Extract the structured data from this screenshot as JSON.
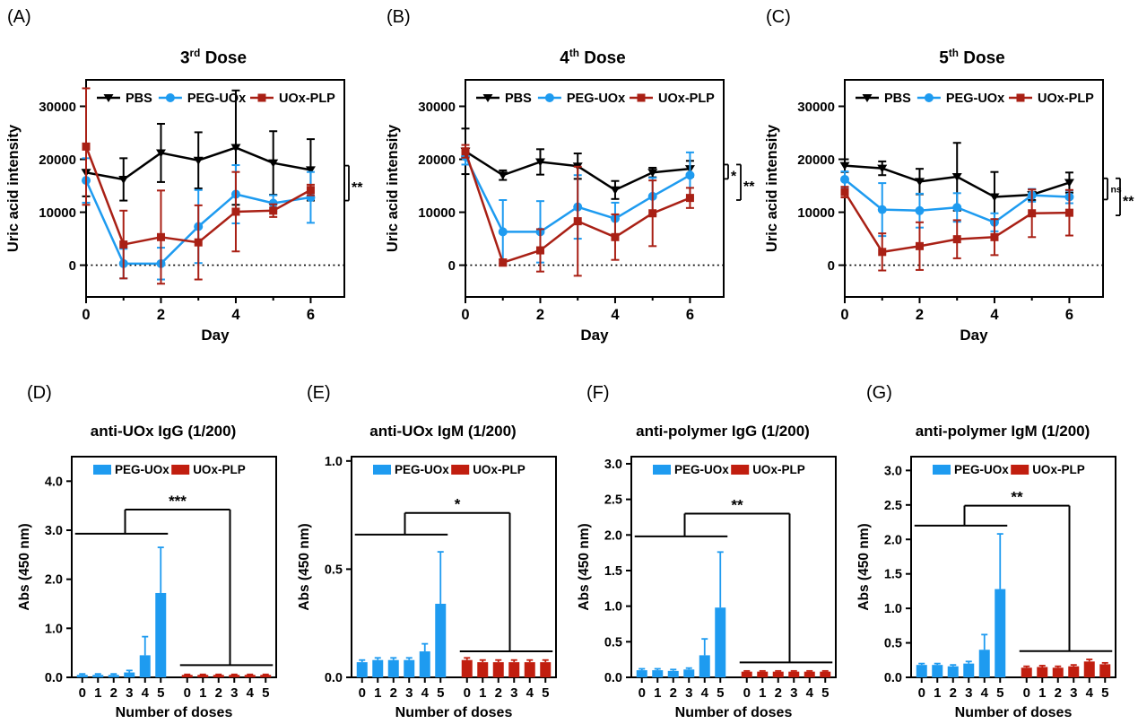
{
  "colors": {
    "pbs": "#000000",
    "peg_uox": "#1E9BF0",
    "uox_plp": "#A92015",
    "uox_plp_bar": "#C11E0F",
    "axis": "#000000"
  },
  "chart_data": [
    {
      "panel_letter": "(A)",
      "type": "line",
      "title_base": "3",
      "title_sup": "rd",
      "title_rest": " Dose",
      "xlabel": "Day",
      "ylabel": "Uric acid intensity",
      "x": [
        0,
        1,
        2,
        3,
        4,
        5,
        6
      ],
      "xticks_major": [
        0,
        2,
        4,
        6
      ],
      "xticks_minor": [
        1,
        3,
        5
      ],
      "yticks": [
        0,
        10000,
        20000,
        30000
      ],
      "ytick_labels": [
        "0",
        "10000",
        "20000",
        "30000"
      ],
      "ylim": [
        -6000,
        35000
      ],
      "xlim": [
        0,
        6.9
      ],
      "zero_line": true,
      "series": [
        {
          "name": "PBS",
          "color_key": "pbs",
          "marker": "triangle-down",
          "values": [
            17500,
            16200,
            21200,
            19800,
            22200,
            19300,
            18000
          ],
          "errors": [
            4500,
            4000,
            5500,
            5300,
            10800,
            6000,
            5800
          ]
        },
        {
          "name": "PEG-UOx",
          "color_key": "peg_uox",
          "marker": "circle",
          "values": [
            16000,
            300,
            300,
            7300,
            13400,
            11700,
            12800
          ],
          "errors": [
            4200,
            2800,
            3000,
            6900,
            5500,
            1500,
            4800
          ]
        },
        {
          "name": "UOx-PLP",
          "color_key": "uox_plp",
          "marker": "square",
          "values": [
            22400,
            3900,
            5300,
            4300,
            10100,
            10300,
            14200
          ],
          "errors": [
            11000,
            6400,
            8800,
            7000,
            7500,
            1200,
            1000
          ]
        }
      ],
      "significance": [
        {
          "label": "**",
          "from": 18800,
          "to": 12200
        }
      ]
    },
    {
      "panel_letter": "(B)",
      "type": "line",
      "title_base": "4",
      "title_sup": "th",
      "title_rest": " Dose",
      "xlabel": "Day",
      "ylabel": "Uric acid intensity",
      "x": [
        0,
        1,
        2,
        3,
        4,
        5,
        6
      ],
      "xticks_major": [
        0,
        2,
        4,
        6
      ],
      "xticks_minor": [
        1,
        3,
        5
      ],
      "yticks": [
        0,
        10000,
        20000,
        30000
      ],
      "ytick_labels": [
        "0",
        "10000",
        "20000",
        "30000"
      ],
      "ylim": [
        -6000,
        35000
      ],
      "xlim": [
        0,
        6.9
      ],
      "zero_line": true,
      "series": [
        {
          "name": "PBS",
          "color_key": "pbs",
          "marker": "triangle-down",
          "values": [
            21500,
            17000,
            19500,
            18700,
            14200,
            17500,
            18200
          ],
          "errors": [
            4300,
            900,
            2400,
            2400,
            1700,
            900,
            1500
          ]
        },
        {
          "name": "PEG-UOx",
          "color_key": "peg_uox",
          "marker": "circle",
          "values": [
            20500,
            6300,
            6300,
            11000,
            8800,
            13000,
            17000
          ],
          "errors": [
            1500,
            6000,
            5800,
            6000,
            3000,
            3500,
            4300
          ]
        },
        {
          "name": "UOx-PLP",
          "color_key": "uox_plp",
          "marker": "square",
          "values": [
            21500,
            500,
            2800,
            8300,
            5300,
            9800,
            12700
          ],
          "errors": [
            1200,
            600,
            4000,
            10300,
            4300,
            6200,
            1900
          ]
        }
      ],
      "significance": [
        {
          "label": "*",
          "from": 19000,
          "to": 16300
        },
        {
          "label": "**",
          "from": 19000,
          "to": 12300
        }
      ]
    },
    {
      "panel_letter": "(C)",
      "type": "line",
      "title_base": "5",
      "title_sup": "th",
      "title_rest": " Dose",
      "xlabel": "Day",
      "ylabel": "Uric acid intensity",
      "x": [
        0,
        1,
        2,
        3,
        4,
        5,
        6
      ],
      "xticks_major": [
        0,
        2,
        4,
        6
      ],
      "xticks_minor": [
        1,
        3,
        5
      ],
      "yticks": [
        0,
        10000,
        20000,
        30000
      ],
      "ytick_labels": [
        "0",
        "10000",
        "20000",
        "30000"
      ],
      "ylim": [
        -6000,
        35000
      ],
      "xlim": [
        0,
        6.9
      ],
      "zero_line": true,
      "series": [
        {
          "name": "PBS",
          "color_key": "pbs",
          "marker": "triangle-down",
          "values": [
            18800,
            18300,
            15800,
            16700,
            12900,
            13300,
            15600
          ],
          "errors": [
            1200,
            1300,
            2400,
            6400,
            4700,
            1000,
            1900
          ]
        },
        {
          "name": "PEG-UOx",
          "color_key": "peg_uox",
          "marker": "circle",
          "values": [
            16200,
            10500,
            10300,
            10900,
            8100,
            13200,
            12900
          ],
          "errors": [
            1500,
            5000,
            3200,
            2700,
            1700,
            1200,
            1200
          ]
        },
        {
          "name": "UOx-PLP",
          "color_key": "uox_plp",
          "marker": "square",
          "values": [
            13800,
            2500,
            3600,
            4900,
            5300,
            9800,
            9900
          ],
          "errors": [
            1000,
            3500,
            4500,
            3600,
            3400,
            4500,
            4300
          ]
        }
      ],
      "significance": [
        {
          "label": "ns",
          "from": 16400,
          "to": 12400
        },
        {
          "label": "**",
          "from": 16400,
          "to": 9400
        }
      ]
    },
    {
      "panel_letter": "(D)",
      "type": "bar",
      "title": "anti-UOx IgG (1/200)",
      "xlabel": "Number of doses",
      "ylabel": "Abs (450 nm)",
      "categories": [
        "0",
        "1",
        "2",
        "3",
        "4",
        "5"
      ],
      "yticks": [
        0,
        1,
        2,
        3,
        4
      ],
      "ytick_labels": [
        "0.0",
        "1.0",
        "2.0",
        "3.0",
        "4.0"
      ],
      "ylim": [
        0,
        4.5
      ],
      "series": [
        {
          "name": "PEG-UOx",
          "color_key": "peg_uox",
          "values": [
            0.05,
            0.05,
            0.05,
            0.1,
            0.45,
            1.72
          ],
          "errors": [
            0.02,
            0.02,
            0.02,
            0.04,
            0.38,
            0.93
          ]
        },
        {
          "name": "UOx-PLP",
          "color_key": "uox_plp_bar",
          "values": [
            0.05,
            0.05,
            0.05,
            0.05,
            0.05,
            0.05
          ],
          "errors": [
            0.01,
            0.01,
            0.01,
            0.01,
            0.01,
            0.01
          ]
        }
      ],
      "significance": {
        "label": "***",
        "left_line_y": 2.93,
        "right_line_y": 0.25,
        "top_y": 3.42
      }
    },
    {
      "panel_letter": "(E)",
      "type": "bar",
      "title": "anti-UOx IgM (1/200)",
      "xlabel": "Number of doses",
      "ylabel": "Abs (450 nm)",
      "categories": [
        "0",
        "1",
        "2",
        "3",
        "4",
        "5"
      ],
      "yticks": [
        0,
        0.5,
        1
      ],
      "ytick_labels": [
        "0.0",
        "0.5",
        "1.0"
      ],
      "ylim": [
        0,
        1.02
      ],
      "series": [
        {
          "name": "PEG-UOx",
          "color_key": "peg_uox",
          "values": [
            0.07,
            0.08,
            0.08,
            0.08,
            0.12,
            0.34
          ],
          "errors": [
            0.01,
            0.01,
            0.01,
            0.01,
            0.035,
            0.24
          ]
        },
        {
          "name": "UOx-PLP",
          "color_key": "uox_plp_bar",
          "values": [
            0.08,
            0.07,
            0.07,
            0.07,
            0.07,
            0.07
          ],
          "errors": [
            0.01,
            0.01,
            0.01,
            0.01,
            0.01,
            0.01
          ]
        }
      ],
      "significance": {
        "label": "*",
        "left_line_y": 0.66,
        "right_line_y": 0.12,
        "top_y": 0.76
      }
    },
    {
      "panel_letter": "(F)",
      "type": "bar",
      "title": "anti-polymer IgG (1/200)",
      "xlabel": "Number of doses",
      "ylabel": "Abs (450 nm)",
      "categories": [
        "0",
        "1",
        "2",
        "3",
        "4",
        "5"
      ],
      "yticks": [
        0,
        0.5,
        1,
        1.5,
        2,
        2.5,
        3
      ],
      "ytick_labels": [
        "0.0",
        "0.5",
        "1.0",
        "1.5",
        "2.0",
        "2.5",
        "3.0"
      ],
      "ylim": [
        0,
        3.1
      ],
      "series": [
        {
          "name": "PEG-UOx",
          "color_key": "peg_uox",
          "values": [
            0.1,
            0.1,
            0.09,
            0.11,
            0.31,
            0.98
          ],
          "errors": [
            0.02,
            0.02,
            0.02,
            0.02,
            0.23,
            0.78
          ]
        },
        {
          "name": "UOx-PLP",
          "color_key": "uox_plp_bar",
          "values": [
            0.08,
            0.08,
            0.08,
            0.08,
            0.08,
            0.08
          ],
          "errors": [
            0.01,
            0.01,
            0.01,
            0.01,
            0.01,
            0.01
          ]
        }
      ],
      "significance": {
        "label": "**",
        "left_line_y": 1.98,
        "right_line_y": 0.21,
        "top_y": 2.3
      }
    },
    {
      "panel_letter": "(G)",
      "type": "bar",
      "title": "anti-polymer IgM (1/200)",
      "xlabel": "Number of doses",
      "ylabel": "Abs (450 nm)",
      "categories": [
        "0",
        "1",
        "2",
        "3",
        "4",
        "5"
      ],
      "yticks": [
        0,
        0.5,
        1,
        1.5,
        2,
        2.5,
        3
      ],
      "ytick_labels": [
        "0.0",
        "0.5",
        "1.0",
        "1.5",
        "2.0",
        "2.5",
        "3.0"
      ],
      "ylim": [
        0,
        3.2
      ],
      "series": [
        {
          "name": "PEG-UOx",
          "color_key": "peg_uox",
          "values": [
            0.18,
            0.18,
            0.16,
            0.2,
            0.4,
            1.28
          ],
          "errors": [
            0.02,
            0.02,
            0.02,
            0.03,
            0.22,
            0.8
          ]
        },
        {
          "name": "UOx-PLP",
          "color_key": "uox_plp_bar",
          "values": [
            0.14,
            0.15,
            0.14,
            0.16,
            0.23,
            0.19
          ],
          "errors": [
            0.02,
            0.02,
            0.02,
            0.02,
            0.03,
            0.02
          ]
        }
      ],
      "significance": {
        "label": "**",
        "left_line_y": 2.2,
        "right_line_y": 0.38,
        "top_y": 2.49
      }
    }
  ]
}
